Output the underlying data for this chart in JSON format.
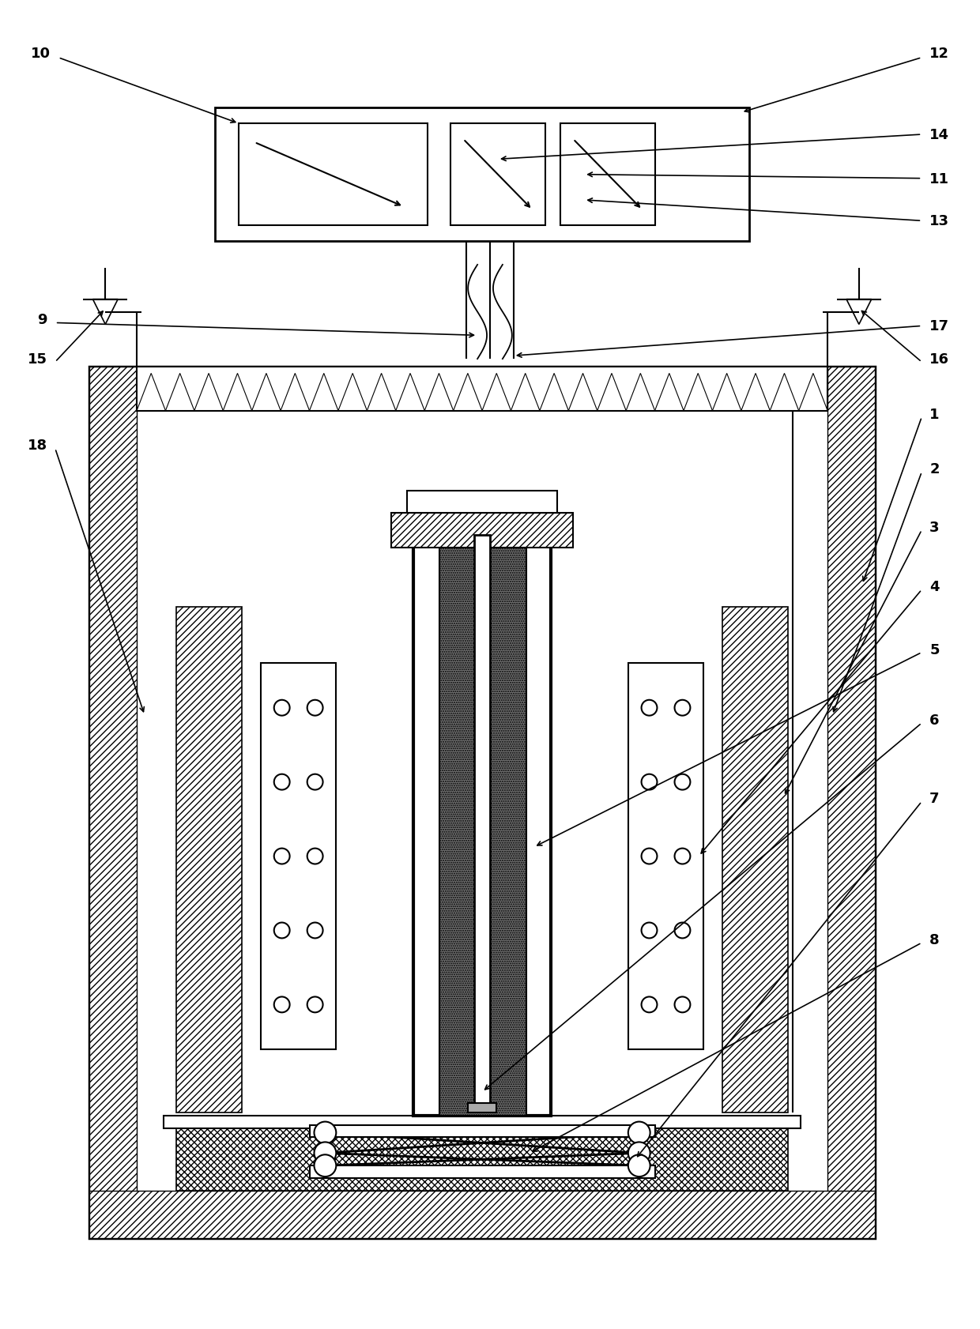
{
  "bg_color": "#ffffff",
  "fig_width": 12.4,
  "fig_height": 16.83,
  "dpi": 100
}
